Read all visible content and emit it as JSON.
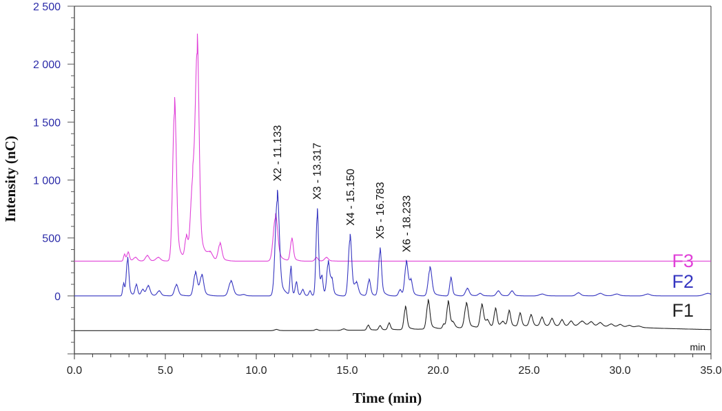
{
  "chart_data": {
    "type": "line",
    "title": "",
    "xlabel": "Time (min)",
    "ylabel": "Intensity (nC)",
    "x_unit_label": "min",
    "xlim": [
      0,
      35
    ],
    "ylim": [
      -500,
      2500
    ],
    "x_ticks": [
      0,
      5,
      10,
      15,
      20,
      25,
      30,
      35
    ],
    "x_tick_labels": [
      "0.0",
      "5.0",
      "10.0",
      "15.0",
      "20.0",
      "25.0",
      "30.0",
      "35.0"
    ],
    "y_ticks": [
      0,
      500,
      1000,
      1500,
      2000,
      2500
    ],
    "y_tick_labels": [
      "0",
      "500",
      "1 000",
      "1 500",
      "2 000",
      "2 500"
    ],
    "grid": false,
    "series": [
      {
        "name": "F3",
        "color": "#e040d8",
        "baseline": 300,
        "start": 2.6,
        "peaks": [
          [
            2.75,
            55,
            0.05
          ],
          [
            2.95,
            70,
            0.07
          ],
          [
            3.35,
            30,
            0.1
          ],
          [
            4.0,
            45,
            0.1
          ],
          [
            4.6,
            30,
            0.12
          ],
          [
            5.5,
            1270,
            0.1
          ],
          [
            6.15,
            185,
            0.08
          ],
          [
            6.5,
            650,
            0.12
          ],
          [
            6.75,
            1650,
            0.1
          ],
          [
            7.45,
            65,
            0.15
          ],
          [
            8.0,
            140,
            0.1
          ],
          [
            11.05,
            370,
            0.12
          ],
          [
            11.95,
            180,
            0.08
          ],
          [
            13.3,
            30,
            0.08
          ],
          [
            13.85,
            30,
            0.1
          ]
        ]
      },
      {
        "name": "F2",
        "color": "#3535c0",
        "baseline": 0,
        "start": 2.5,
        "peaks": [
          [
            2.7,
            100,
            0.05
          ],
          [
            2.92,
            300,
            0.07
          ],
          [
            3.4,
            90,
            0.07
          ],
          [
            3.75,
            50,
            0.08
          ],
          [
            4.05,
            80,
            0.1
          ],
          [
            4.65,
            40,
            0.1
          ],
          [
            5.6,
            90,
            0.1
          ],
          [
            6.65,
            190,
            0.1
          ],
          [
            7.0,
            160,
            0.1
          ],
          [
            8.6,
            120,
            0.12
          ],
          [
            9.3,
            10,
            0.1
          ],
          [
            11.15,
            820,
            0.11
          ],
          [
            11.9,
            230,
            0.05
          ],
          [
            12.2,
            110,
            0.06
          ],
          [
            12.55,
            50,
            0.07
          ],
          [
            12.95,
            40,
            0.06
          ],
          [
            13.35,
            680,
            0.07
          ],
          [
            13.6,
            130,
            0.06
          ],
          [
            13.95,
            270,
            0.08
          ],
          [
            14.15,
            120,
            0.07
          ],
          [
            15.15,
            480,
            0.09
          ],
          [
            15.5,
            90,
            0.1
          ],
          [
            16.2,
            130,
            0.08
          ],
          [
            16.8,
            375,
            0.08
          ],
          [
            17.9,
            50,
            0.08
          ],
          [
            18.25,
            270,
            0.09
          ],
          [
            18.5,
            110,
            0.08
          ],
          [
            19.55,
            225,
            0.1
          ],
          [
            20.7,
            145,
            0.07
          ],
          [
            21.6,
            60,
            0.1
          ],
          [
            22.3,
            20,
            0.1
          ],
          [
            23.3,
            40,
            0.1
          ],
          [
            24.05,
            40,
            0.1
          ],
          [
            25.7,
            15,
            0.15
          ],
          [
            27.7,
            25,
            0.12
          ],
          [
            28.9,
            20,
            0.15
          ],
          [
            29.8,
            15,
            0.15
          ],
          [
            31.5,
            15,
            0.15
          ],
          [
            34.8,
            20,
            0.2
          ]
        ]
      },
      {
        "name": "F1",
        "color": "#222222",
        "baseline": -300,
        "start": 0,
        "peaks": [
          [
            11.1,
            10,
            0.1
          ],
          [
            13.3,
            10,
            0.08
          ],
          [
            14.8,
            12,
            0.1
          ],
          [
            16.15,
            40,
            0.07
          ],
          [
            16.8,
            35,
            0.07
          ],
          [
            17.3,
            55,
            0.07
          ],
          [
            18.2,
            180,
            0.08
          ],
          [
            19.45,
            225,
            0.09
          ],
          [
            20.3,
            35,
            0.06
          ],
          [
            20.55,
            210,
            0.08
          ],
          [
            20.8,
            40,
            0.1
          ],
          [
            21.55,
            195,
            0.1
          ],
          [
            22.4,
            180,
            0.09
          ],
          [
            22.7,
            50,
            0.1
          ],
          [
            23.15,
            145,
            0.08
          ],
          [
            23.55,
            40,
            0.1
          ],
          [
            23.9,
            125,
            0.08
          ],
          [
            24.5,
            105,
            0.08
          ],
          [
            25.1,
            90,
            0.09
          ],
          [
            25.7,
            70,
            0.09
          ],
          [
            26.25,
            60,
            0.09
          ],
          [
            26.8,
            50,
            0.09
          ],
          [
            27.3,
            40,
            0.1
          ],
          [
            27.9,
            40,
            0.15
          ],
          [
            28.4,
            35,
            0.12
          ],
          [
            28.9,
            30,
            0.12
          ],
          [
            29.5,
            22,
            0.12
          ],
          [
            30.0,
            20,
            0.12
          ],
          [
            30.5,
            15,
            0.12
          ],
          [
            31.0,
            12,
            0.15
          ]
        ],
        "hump": [
          26.5,
          40,
          5
        ]
      }
    ],
    "annotations": [
      {
        "label": "X2 - 11.133",
        "x": 11.133,
        "series": "F2"
      },
      {
        "label": "X3 - 13.317",
        "x": 13.317,
        "series": "F2"
      },
      {
        "label": "X4 - 15.150",
        "x": 15.15,
        "series": "F2"
      },
      {
        "label": "X5 - 16.783",
        "x": 16.783,
        "series": "F2"
      },
      {
        "label": "X6 - 18.233",
        "x": 18.233,
        "series": "F2"
      }
    ]
  }
}
